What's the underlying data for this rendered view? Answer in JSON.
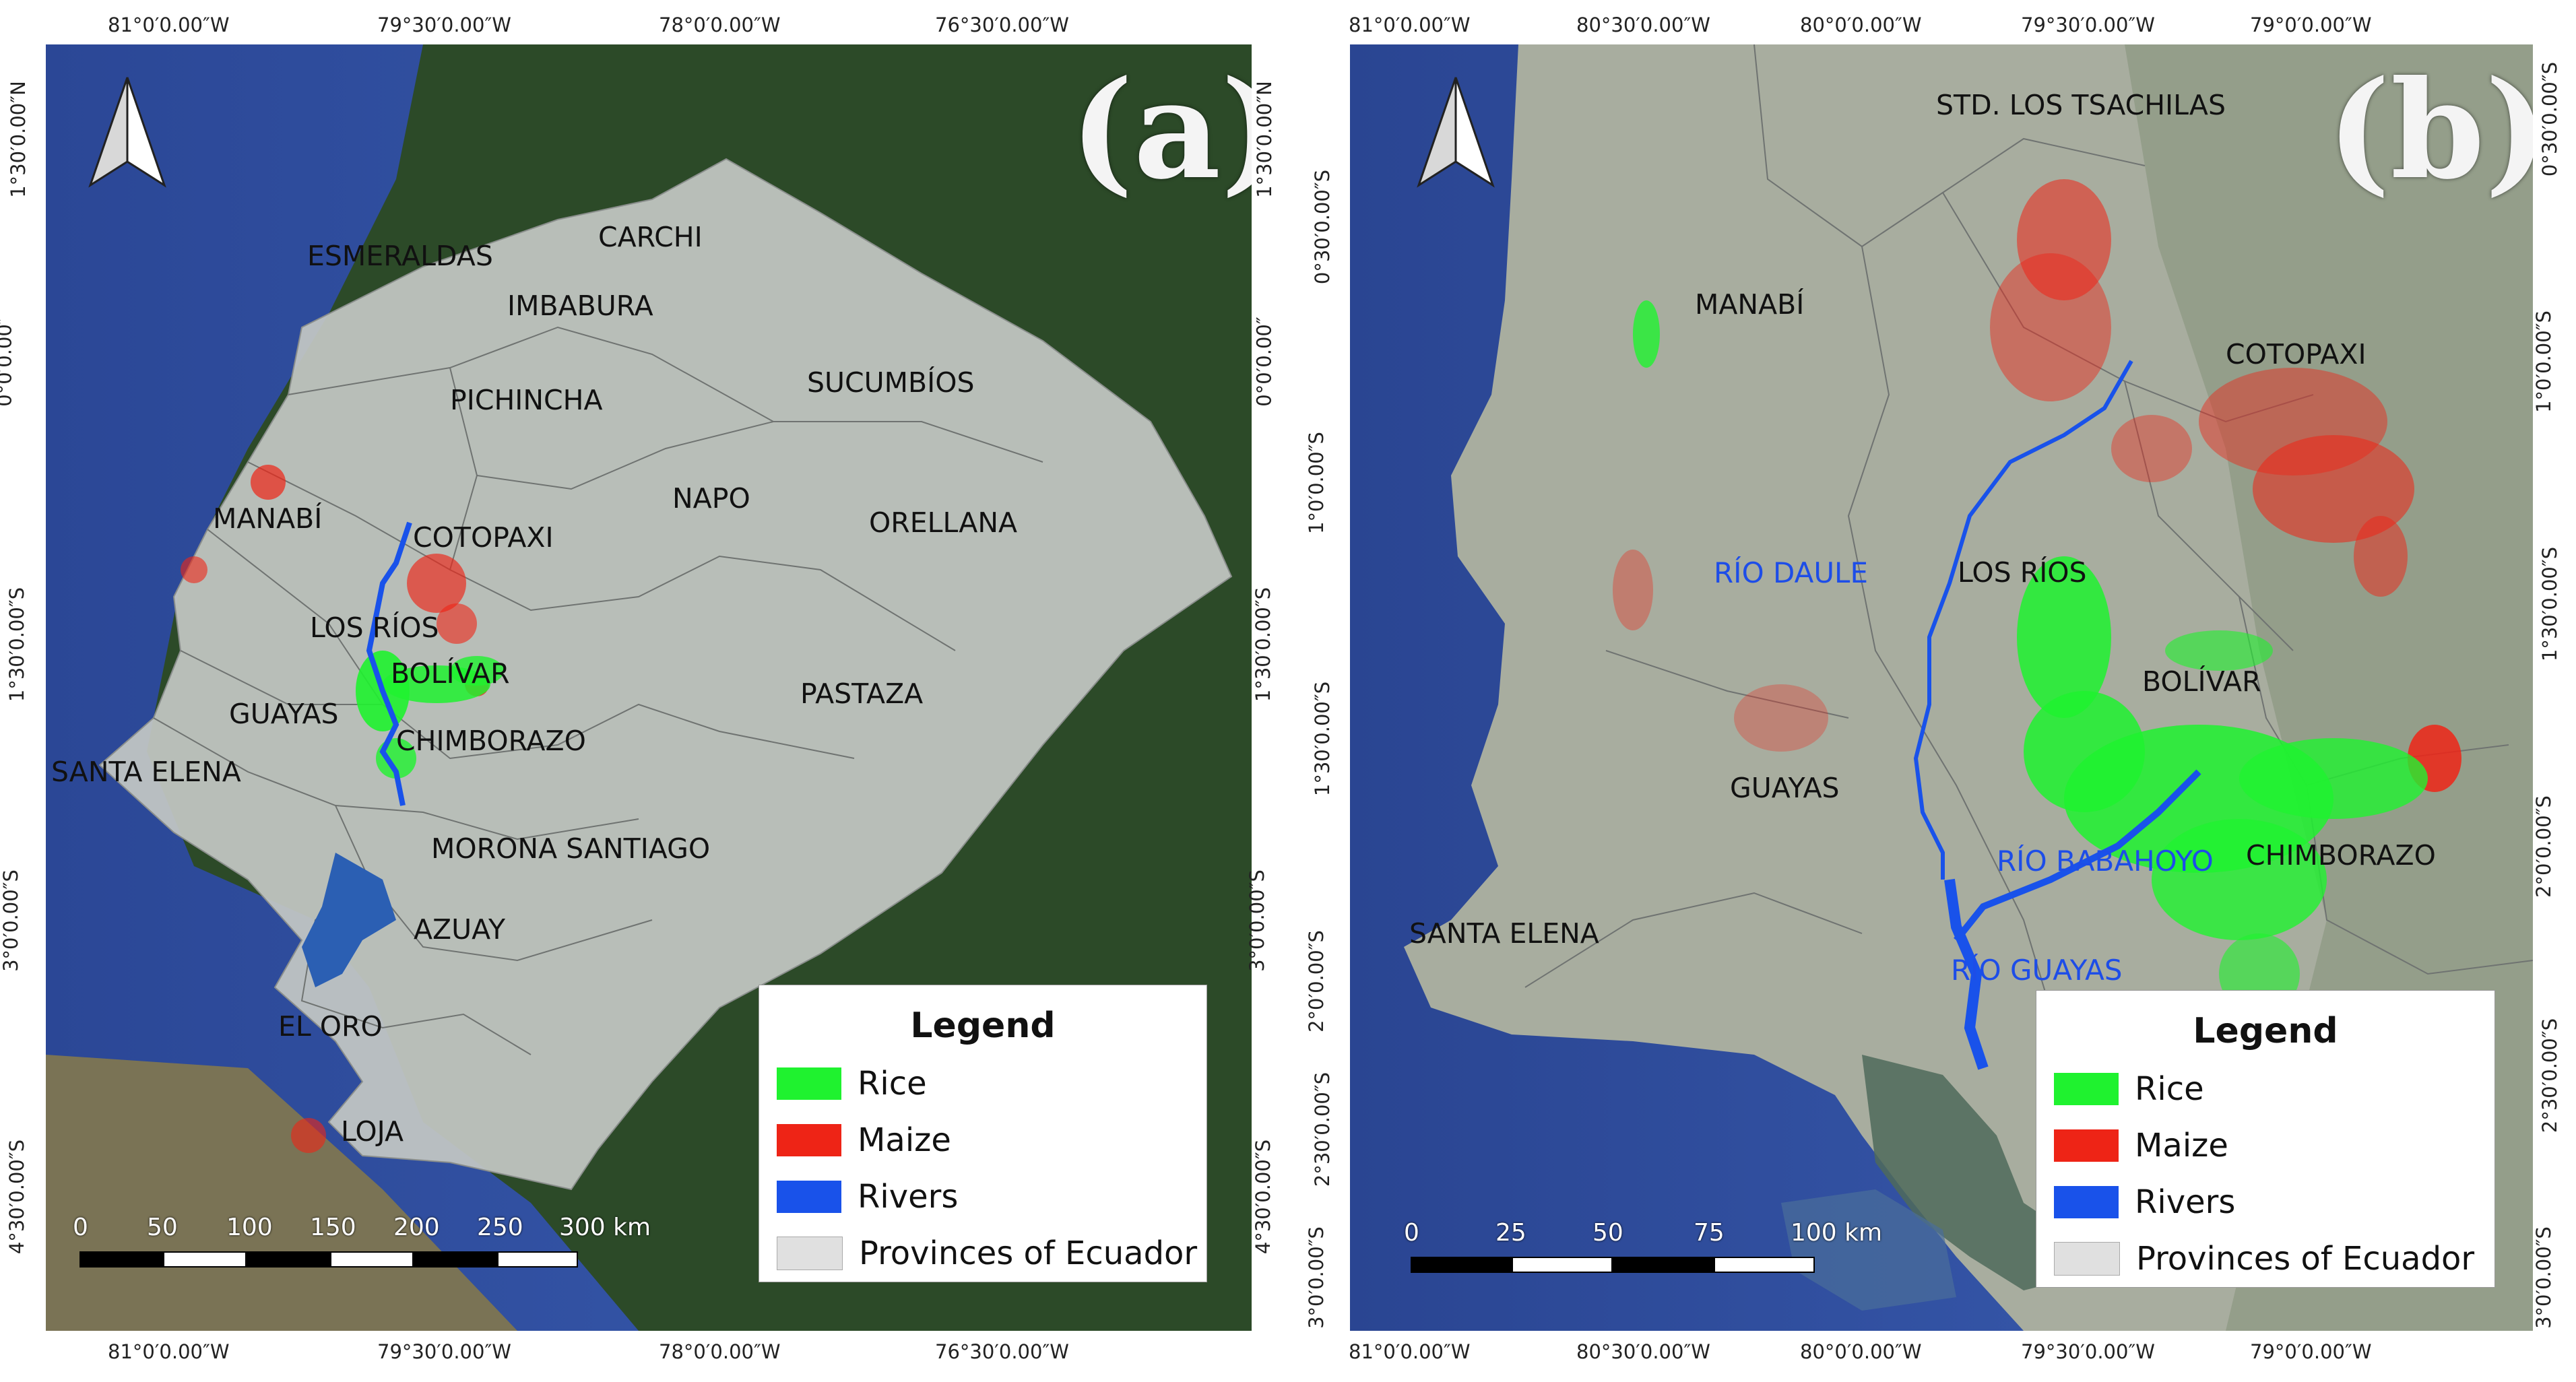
{
  "panel_a": {
    "letter": "(a)",
    "lon_labels": [
      "81°0′0.00″W",
      "79°30′0.00″W",
      "78°0′0.00″W",
      "76°30′0.00″W"
    ],
    "lat_labels": [
      "1°30′0.00″N",
      "0°0′0.00″",
      "1°30′0.00″S",
      "3°0′0.00″S",
      "4°30′0.00″S"
    ],
    "provinces": [
      "ESMERALDAS",
      "CARCHI",
      "IMBABURA",
      "PICHINCHA",
      "SUCUMBÍOS",
      "NAPO",
      "ORELLANA",
      "MANABÍ",
      "COTOPAXI",
      "LOS RÍOS",
      "BOLÍVAR",
      "GUAYAS",
      "CHIMBORAZO",
      "SANTA ELENA",
      "PASTAZA",
      "MORONA SANTIAGO",
      "AZUAY",
      "EL ORO",
      "LOJA"
    ],
    "scale": [
      "0",
      "50",
      "100",
      "150",
      "200",
      "250",
      "300 km"
    ]
  },
  "panel_b": {
    "letter": "(b)",
    "lon_labels": [
      "81°0′0.00″W",
      "80°30′0.00″W",
      "80°0′0.00″W",
      "79°30′0.00″W",
      "79°0′0.00″W"
    ],
    "lat_labels": [
      "0°30′0.00″S",
      "1°0′0.00″S",
      "1°30′0.00″S",
      "2°0′0.00″S",
      "2°30′0.00″S",
      "3°0′0.00″S"
    ],
    "provinces": [
      "STD. LOS TSACHILAS",
      "MANABÍ",
      "COTOPAXI",
      "LOS RÍOS",
      "BOLÍVAR",
      "GUAYAS",
      "CHIMBORAZO",
      "SANTA ELENA"
    ],
    "rivers": [
      "RÍO DAULE",
      "RÍO BABAHOYO",
      "RÍO GUAYAS"
    ],
    "scale": [
      "0",
      "25",
      "50",
      "75",
      "100 km"
    ]
  },
  "legend": {
    "title": "Legend",
    "items": [
      {
        "label": "Rice",
        "color": "#1ff22f"
      },
      {
        "label": "Maize",
        "color": "#ee2416"
      },
      {
        "label": "Rivers",
        "color": "#1952ea"
      },
      {
        "label": "Provinces of Ecuador",
        "color": "#e0e0e0"
      }
    ]
  },
  "colors": {
    "ocean": "#2f4d9a",
    "forest": "#2a4a26",
    "province_fill": "#bfc4c2",
    "rice": "#1ff22f",
    "maize": "#ee2416",
    "river": "#1952ea"
  },
  "icons": [
    "north-arrow-icon"
  ]
}
